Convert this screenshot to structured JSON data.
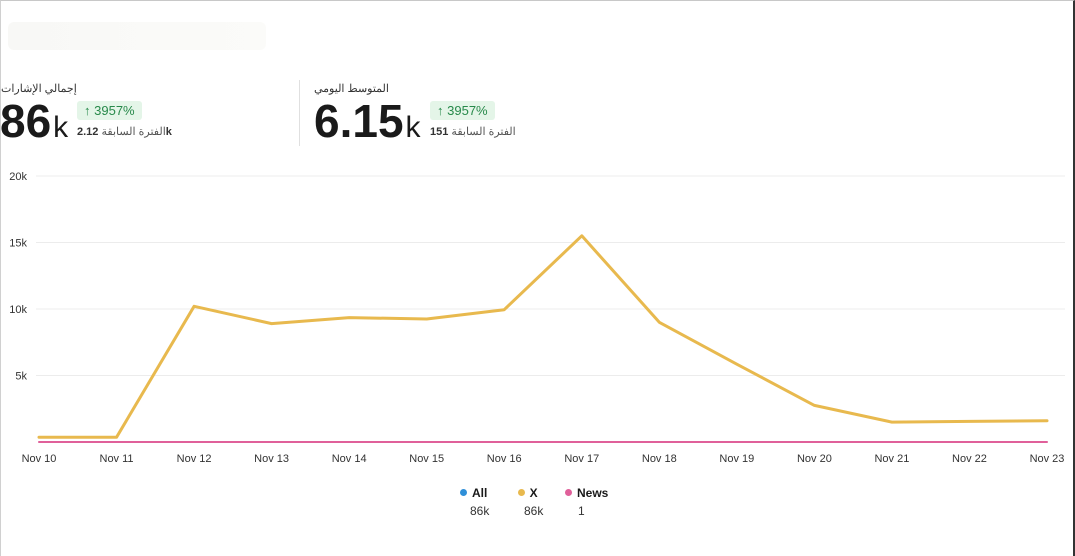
{
  "stats": [
    {
      "label": "إجمالي الإشارات",
      "value": "86",
      "unit": "k",
      "change": "3957%",
      "prev_label": "الفترة السابقة",
      "prev_value": "2.12",
      "prev_unit": "k"
    },
    {
      "label": "المتوسط اليومي",
      "value": "6.15",
      "unit": "k",
      "change": "3957%",
      "prev_label": "الفترة السابقة",
      "prev_value": "151",
      "prev_unit": ""
    }
  ],
  "legend": [
    {
      "name": "All",
      "count": "86k",
      "color": "#2f8fd8"
    },
    {
      "name": "X",
      "count": "86k",
      "color": "#e8b94e"
    },
    {
      "name": "News",
      "count": "1",
      "color": "#e0609a"
    }
  ],
  "chart_data": {
    "type": "line",
    "categories": [
      "Nov 10",
      "Nov 11",
      "Nov 12",
      "Nov 13",
      "Nov 14",
      "Nov 15",
      "Nov 16",
      "Nov 17",
      "Nov 18",
      "Nov 19",
      "Nov 20",
      "Nov 21",
      "Nov 22",
      "Nov 23"
    ],
    "y_ticks": [
      "20k",
      "15k",
      "10k",
      "5k"
    ],
    "y_tick_values": [
      20000,
      15000,
      10000,
      5000
    ],
    "ylim": [
      0,
      20000
    ],
    "grid": true,
    "legend_placement": "bottom",
    "series": [
      {
        "name": "X",
        "color": "#e8b94e",
        "values": [
          350,
          350,
          10200,
          8900,
          9350,
          9250,
          9950,
          15500,
          9000,
          5850,
          2750,
          1500,
          1550,
          1600
        ]
      },
      {
        "name": "News",
        "color": "#e0609a",
        "values": [
          0,
          0,
          0,
          0,
          0,
          0,
          0,
          0,
          0,
          0,
          0,
          0,
          0,
          0
        ]
      }
    ]
  }
}
